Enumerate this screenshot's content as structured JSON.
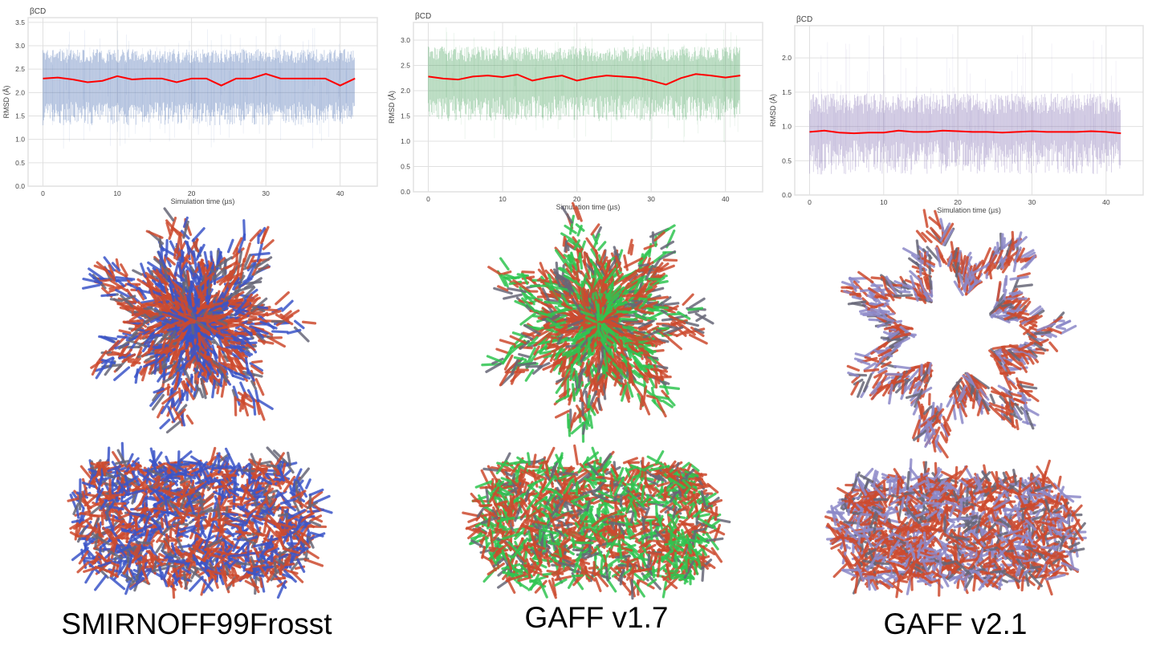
{
  "chart_data": [
    {
      "type": "line",
      "title": "βCD",
      "xlabel": "Simulation time (µs)",
      "ylabel": "RMSD (Å)",
      "xlim": [
        -2,
        45
      ],
      "ylim": [
        0,
        3.6
      ],
      "xticks": [
        "0",
        "10",
        "20",
        "30",
        "40"
      ],
      "yticks": [
        "0.0",
        "0.5",
        "1.0",
        "1.5",
        "2.0",
        "2.5",
        "3.0",
        "3.5"
      ],
      "grid": true,
      "trace_color": "#3a62ad",
      "mean_color": "#ff0000",
      "x": [
        0,
        2,
        4,
        6,
        8,
        10,
        12,
        14,
        16,
        18,
        20,
        22,
        24,
        26,
        28,
        30,
        32,
        34,
        36,
        38,
        40,
        42
      ],
      "running_mean": [
        2.3,
        2.32,
        2.28,
        2.22,
        2.25,
        2.35,
        2.28,
        2.3,
        2.3,
        2.22,
        2.3,
        2.3,
        2.15,
        2.3,
        2.3,
        2.4,
        2.3,
        2.3,
        2.3,
        2.3,
        2.15,
        2.3
      ],
      "trace_band": {
        "typical_low": 1.6,
        "typical_high": 2.75,
        "min": 0.8,
        "max": 3.4
      }
    },
    {
      "type": "line",
      "title": "βCD",
      "xlabel": "Simulation time (µs)",
      "ylabel": "RMSD (Å)",
      "xlim": [
        -2,
        45
      ],
      "ylim": [
        0,
        3.35
      ],
      "xticks": [
        "0",
        "10",
        "20",
        "30",
        "40"
      ],
      "yticks": [
        "0.0",
        "0.5",
        "1.0",
        "1.5",
        "2.0",
        "2.5",
        "3.0"
      ],
      "grid": true,
      "trace_color": "#3a9a50",
      "mean_color": "#ff0000",
      "x": [
        0,
        2,
        4,
        6,
        8,
        10,
        12,
        14,
        16,
        18,
        20,
        22,
        24,
        26,
        28,
        30,
        32,
        34,
        36,
        38,
        40,
        42
      ],
      "running_mean": [
        2.28,
        2.24,
        2.22,
        2.28,
        2.3,
        2.27,
        2.32,
        2.2,
        2.26,
        2.3,
        2.2,
        2.26,
        2.3,
        2.28,
        2.26,
        2.2,
        2.12,
        2.25,
        2.33,
        2.3,
        2.26,
        2.3
      ],
      "trace_band": {
        "typical_low": 1.7,
        "typical_high": 2.7,
        "min": 0.9,
        "max": 3.3
      }
    },
    {
      "type": "line",
      "title": "βCD",
      "xlabel": "Simulation time (µs)",
      "ylabel": "RMSD (Å)",
      "xlim": [
        -2,
        45
      ],
      "ylim": [
        0,
        2.47
      ],
      "xticks": [
        "0",
        "10",
        "20",
        "30",
        "40"
      ],
      "yticks": [
        "0.0",
        "0.5",
        "1.0",
        "1.5",
        "2.0"
      ],
      "grid": true,
      "trace_color": "#7a68b0",
      "mean_color": "#ff0000",
      "x": [
        0,
        2,
        4,
        6,
        8,
        10,
        12,
        14,
        16,
        18,
        20,
        22,
        24,
        26,
        28,
        30,
        32,
        34,
        36,
        38,
        40,
        42
      ],
      "running_mean": [
        0.92,
        0.94,
        0.91,
        0.9,
        0.91,
        0.91,
        0.94,
        0.92,
        0.92,
        0.94,
        0.93,
        0.92,
        0.92,
        0.91,
        0.92,
        0.93,
        0.92,
        0.92,
        0.92,
        0.93,
        0.92,
        0.9
      ],
      "trace_band": {
        "typical_low": 0.6,
        "typical_high": 1.3,
        "min": 0.4,
        "max": 2.35
      }
    }
  ],
  "structures": [
    {
      "label": "SMIRNOFF99Frosst",
      "carbon_color": "#3b55c8",
      "oxygen_color": "#cc4a2e"
    },
    {
      "label": "GAFF v1.7",
      "carbon_color": "#2fc450",
      "oxygen_color": "#cc4a2e"
    },
    {
      "label": "GAFF v2.1",
      "carbon_color": "#8c88c8",
      "oxygen_color": "#cc4a2e"
    }
  ]
}
